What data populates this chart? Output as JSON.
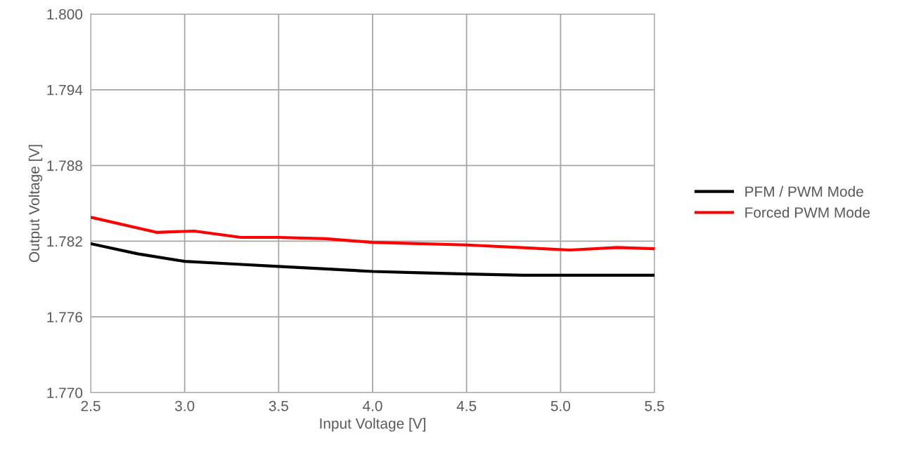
{
  "chart_data": {
    "type": "line",
    "xlabel": "Input Voltage [V]",
    "ylabel": "Output Voltage [V]",
    "xlim": [
      2.5,
      5.5
    ],
    "xticks": [
      {
        "value": 2.5,
        "label": "2.5"
      },
      {
        "value": 3.0,
        "label": "3.0"
      },
      {
        "value": 3.5,
        "label": "3.5"
      },
      {
        "value": 4.0,
        "label": "4.0"
      },
      {
        "value": 4.5,
        "label": "4.5"
      },
      {
        "value": 5.0,
        "label": "5.0"
      },
      {
        "value": 5.5,
        "label": "5.5"
      }
    ],
    "ylim": [
      1.77,
      1.8
    ],
    "yticks": [
      {
        "value": 1.77,
        "label": "1.770"
      },
      {
        "value": 1.776,
        "label": "1.776"
      },
      {
        "value": 1.782,
        "label": "1.782"
      },
      {
        "value": 1.788,
        "label": "1.788"
      },
      {
        "value": 1.794,
        "label": "1.794"
      },
      {
        "value": 1.8,
        "label": "1.800"
      }
    ],
    "grid": true,
    "legend": "right",
    "marker": "none",
    "line_style": "solid",
    "series": [
      {
        "name": "PFM / PWM Mode",
        "color": "#000000",
        "x": [
          2.5,
          2.75,
          3.0,
          3.25,
          3.5,
          3.75,
          4.0,
          4.25,
          4.5,
          4.8,
          5.0,
          5.25,
          5.5
        ],
        "values": [
          1.7818,
          1.781,
          1.7804,
          1.7802,
          1.78,
          1.7798,
          1.7796,
          1.7795,
          1.7794,
          1.7793,
          1.7793,
          1.7793,
          1.7793
        ]
      },
      {
        "name": "Forced PWM Mode",
        "color": "#ff0000",
        "x": [
          2.5,
          2.85,
          3.05,
          3.3,
          3.5,
          3.75,
          4.0,
          4.5,
          5.05,
          5.3,
          5.5
        ],
        "values": [
          1.7839,
          1.7827,
          1.7828,
          1.7823,
          1.7823,
          1.7822,
          1.7819,
          1.7817,
          1.7813,
          1.7815,
          1.7814
        ]
      }
    ]
  }
}
